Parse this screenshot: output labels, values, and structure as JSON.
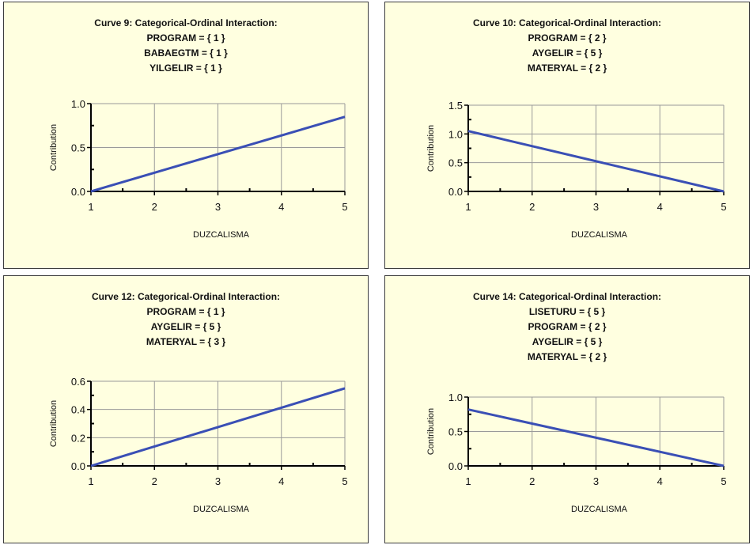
{
  "chart_data": [
    {
      "type": "line",
      "title": "Curve 9: Categorical-Ordinal Interaction:",
      "subtitle_lines": [
        "PROGRAM = { 1 }",
        "BABAEGTM = { 1 }",
        "YILGELIR = { 1 }"
      ],
      "xlabel": "DUZCALISMA",
      "ylabel": "Contribution",
      "xlim": [
        1,
        5
      ],
      "ylim": [
        0,
        1.0
      ],
      "x_ticks": [
        "1",
        "2",
        "3",
        "4",
        "5"
      ],
      "y_ticks": [
        "0.0",
        "0.5",
        "1.0"
      ],
      "grid": true,
      "series": [
        {
          "x": [
            1,
            5
          ],
          "y": [
            0,
            0.85
          ],
          "color": "#3a4fb5"
        }
      ]
    },
    {
      "type": "line",
      "title": "Curve 10: Categorical-Ordinal Interaction:",
      "subtitle_lines": [
        "PROGRAM = { 2 }",
        "AYGELIR = { 5 }",
        "MATERYAL = { 2 }"
      ],
      "xlabel": "DUZCALISMA",
      "ylabel": "Contribution",
      "xlim": [
        1,
        5
      ],
      "ylim": [
        0,
        1.5
      ],
      "x_ticks": [
        "1",
        "2",
        "3",
        "4",
        "5"
      ],
      "y_ticks": [
        "0.0",
        "0.5",
        "1.0",
        "1.5"
      ],
      "grid": true,
      "series": [
        {
          "x": [
            1,
            5
          ],
          "y": [
            1.05,
            0
          ],
          "color": "#3a4fb5"
        }
      ]
    },
    {
      "type": "line",
      "title": "Curve 12: Categorical-Ordinal Interaction:",
      "subtitle_lines": [
        "PROGRAM = { 1 }",
        "AYGELIR = { 5 }",
        "MATERYAL = { 3 }"
      ],
      "xlabel": "DUZCALISMA",
      "ylabel": "Contribution",
      "xlim": [
        1,
        5
      ],
      "ylim": [
        0,
        0.6
      ],
      "x_ticks": [
        "1",
        "2",
        "3",
        "4",
        "5"
      ],
      "y_ticks": [
        "0.0",
        "0.2",
        "0.4",
        "0.6"
      ],
      "grid": true,
      "series": [
        {
          "x": [
            1,
            5
          ],
          "y": [
            0,
            0.55
          ],
          "color": "#3a4fb5"
        }
      ]
    },
    {
      "type": "line",
      "title": "Curve 14: Categorical-Ordinal Interaction:",
      "subtitle_lines": [
        "LISETURU = { 5 }",
        "PROGRAM = { 2 }",
        "AYGELIR = { 5 }",
        "MATERYAL = { 2 }"
      ],
      "xlabel": "DUZCALISMA",
      "ylabel": "Contribution",
      "xlim": [
        1,
        5
      ],
      "ylim": [
        0,
        1.0
      ],
      "x_ticks": [
        "1",
        "2",
        "3",
        "4",
        "5"
      ],
      "y_ticks": [
        "0.0",
        "0.5",
        "1.0"
      ],
      "grid": true,
      "series": [
        {
          "x": [
            1,
            5
          ],
          "y": [
            0.82,
            0
          ],
          "color": "#3a4fb5"
        }
      ]
    }
  ]
}
